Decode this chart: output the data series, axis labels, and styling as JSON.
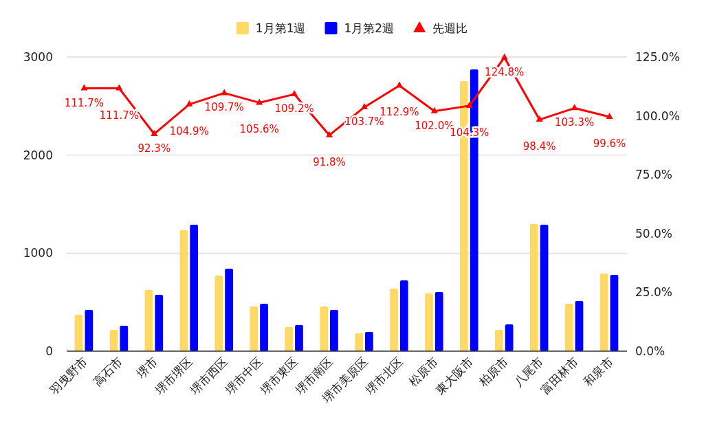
{
  "chart_data": {
    "type": "bar",
    "categories": [
      "羽曳野市",
      "高石市",
      "堺市",
      "堺市堺区",
      "堺市西区",
      "堺市中区",
      "堺市東区",
      "堺市南区",
      "堺市美原区",
      "堺市北区",
      "松原市",
      "東大阪市",
      "柏原市",
      "八尾市",
      "富田林市",
      "和泉市"
    ],
    "series": [
      {
        "name": "1月第1週",
        "color": "#ffd966",
        "values": [
          371,
          217,
          624,
          1233,
          771,
          455,
          245,
          455,
          182,
          638,
          589,
          2754,
          217,
          1296,
          484,
          792
        ]
      },
      {
        "name": "1月第2週",
        "color": "#0000ff",
        "values": [
          420,
          259,
          575,
          1289,
          841,
          484,
          266,
          420,
          196,
          722,
          603,
          2873,
          273,
          1289,
          512,
          778
        ]
      },
      {
        "name": "先週比",
        "type": "line",
        "axis": "y2",
        "color": "#ff0000",
        "marker": "triangle",
        "line_style": "solid",
        "values": [
          111.7,
          111.7,
          92.3,
          104.9,
          109.7,
          105.6,
          109.2,
          91.8,
          103.7,
          112.9,
          102.0,
          104.3,
          124.8,
          98.4,
          103.3,
          99.6
        ],
        "value_labels": [
          "111.7%",
          "111.7%",
          "92.3%",
          "104.9%",
          "109.7%",
          "105.6%",
          "109.2%",
          "91.8%",
          "103.7%",
          "112.9%",
          "102.0%",
          "104.3%",
          "124.8%",
          "98.4%",
          "103.3%",
          "99.6%"
        ]
      }
    ],
    "ylim": [
      0,
      3000
    ],
    "yticks": [
      0,
      1000,
      2000,
      3000
    ],
    "y2lim": [
      0,
      125
    ],
    "y2ticks": [
      {
        "value": 0,
        "label": "0.0%"
      },
      {
        "value": 25,
        "label": "25.0%"
      },
      {
        "value": 50,
        "label": "50.0%"
      },
      {
        "value": 75,
        "label": "75.0%"
      },
      {
        "value": 100,
        "label": "100.0%"
      },
      {
        "value": 125,
        "label": "125.0%"
      }
    ],
    "grid": "y",
    "legend": "top"
  }
}
